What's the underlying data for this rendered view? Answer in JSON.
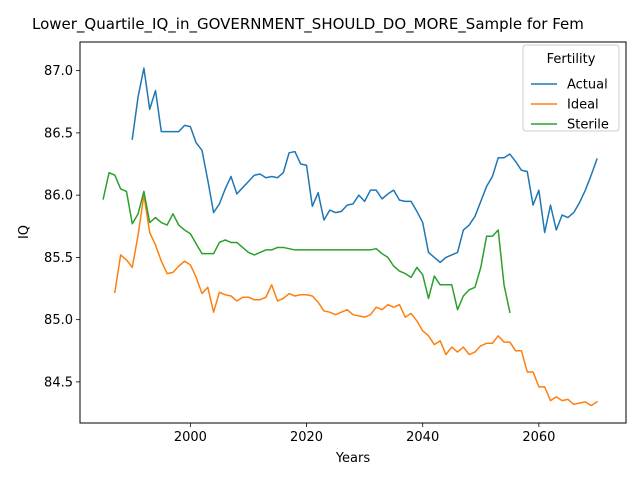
{
  "chart_data": {
    "type": "line",
    "title": "Lower_Quartile_IQ_in_GOVERNMENT_SHOULD_DO_MORE_Sample for Fem",
    "xlabel": "Years",
    "ylabel": "IQ",
    "xlim": [
      1981,
      2075
    ],
    "ylim": [
      84.17,
      87.23
    ],
    "x_ticks": [
      2000,
      2020,
      2040,
      2060
    ],
    "x_tick_labels": [
      "2000",
      "2020",
      "2040",
      "2060"
    ],
    "y_ticks": [
      84.5,
      85.0,
      85.5,
      86.0,
      86.5,
      87.0
    ],
    "y_tick_labels": [
      "84.5",
      "85.0",
      "85.5",
      "86.0",
      "86.5",
      "87.0"
    ],
    "grid": false,
    "legend": {
      "title": "Fertility",
      "placement": "top-right"
    },
    "series": [
      {
        "name": "Actual",
        "color": "#1f77b4",
        "x": [
          1990,
          1991,
          1992,
          1993,
          1994,
          1995,
          1996,
          1997,
          1998,
          1999,
          2000,
          2001,
          2002,
          2003,
          2004,
          2005,
          2006,
          2007,
          2008,
          2009,
          2010,
          2011,
          2012,
          2013,
          2014,
          2015,
          2016,
          2017,
          2018,
          2019,
          2020,
          2021,
          2022,
          2023,
          2024,
          2025,
          2026,
          2027,
          2028,
          2029,
          2030,
          2031,
          2032,
          2033,
          2034,
          2035,
          2036,
          2037,
          2038,
          2039,
          2040,
          2041,
          2042,
          2043,
          2044,
          2045,
          2046,
          2047,
          2048,
          2049,
          2050,
          2051,
          2052,
          2053,
          2054,
          2055,
          2056,
          2057,
          2058,
          2059,
          2060,
          2061,
          2062,
          2063,
          2064,
          2065,
          2066,
          2067,
          2068,
          2069,
          2070
        ],
        "values": [
          86.45,
          86.79,
          87.02,
          86.69,
          86.84,
          86.51,
          86.51,
          86.51,
          86.51,
          86.56,
          86.55,
          86.42,
          86.36,
          86.12,
          85.86,
          85.93,
          86.05,
          86.15,
          86.01,
          86.06,
          86.11,
          86.16,
          86.17,
          86.14,
          86.15,
          86.14,
          86.18,
          86.34,
          86.35,
          86.25,
          86.24,
          85.91,
          86.02,
          85.8,
          85.88,
          85.86,
          85.87,
          85.92,
          85.93,
          86.0,
          85.95,
          86.04,
          86.04,
          85.97,
          86.01,
          86.04,
          85.96,
          85.95,
          85.95,
          85.87,
          85.78,
          85.54,
          85.5,
          85.46,
          85.5,
          85.52,
          85.54,
          85.72,
          85.76,
          85.83,
          85.95,
          86.07,
          86.15,
          86.3,
          86.3,
          86.33,
          86.27,
          86.2,
          86.19,
          85.92,
          86.04,
          85.7,
          85.92,
          85.72,
          85.84,
          85.82,
          85.86,
          85.94,
          86.04,
          86.16,
          86.29
        ]
      },
      {
        "name": "Ideal",
        "color": "#ff7f0e",
        "x": [
          1987,
          1988,
          1989,
          1990,
          1991,
          1992,
          1993,
          1994,
          1995,
          1996,
          1997,
          1998,
          1999,
          2000,
          2001,
          2002,
          2003,
          2004,
          2005,
          2006,
          2007,
          2008,
          2009,
          2010,
          2011,
          2012,
          2013,
          2014,
          2015,
          2016,
          2017,
          2018,
          2019,
          2020,
          2021,
          2022,
          2023,
          2024,
          2025,
          2026,
          2027,
          2028,
          2029,
          2030,
          2031,
          2032,
          2033,
          2034,
          2035,
          2036,
          2037,
          2038,
          2039,
          2040,
          2041,
          2042,
          2043,
          2044,
          2045,
          2046,
          2047,
          2048,
          2049,
          2050,
          2051,
          2052,
          2053,
          2054,
          2055,
          2056,
          2057,
          2058,
          2059,
          2060,
          2061,
          2062,
          2063,
          2064,
          2065,
          2066,
          2067,
          2068,
          2069,
          2070
        ],
        "values": [
          85.22,
          85.52,
          85.48,
          85.42,
          85.68,
          86.0,
          85.7,
          85.6,
          85.47,
          85.37,
          85.38,
          85.43,
          85.47,
          85.44,
          85.34,
          85.21,
          85.26,
          85.06,
          85.22,
          85.2,
          85.19,
          85.15,
          85.18,
          85.18,
          85.16,
          85.16,
          85.18,
          85.28,
          85.15,
          85.17,
          85.21,
          85.19,
          85.2,
          85.2,
          85.19,
          85.14,
          85.07,
          85.06,
          85.04,
          85.06,
          85.08,
          85.04,
          85.03,
          85.02,
          85.04,
          85.1,
          85.08,
          85.12,
          85.1,
          85.12,
          85.02,
          85.05,
          84.99,
          84.91,
          84.87,
          84.8,
          84.83,
          84.72,
          84.78,
          84.74,
          84.78,
          84.72,
          84.74,
          84.79,
          84.81,
          84.81,
          84.87,
          84.82,
          84.82,
          84.75,
          84.75,
          84.58,
          84.58,
          84.46,
          84.46,
          84.35,
          84.38,
          84.35,
          84.36,
          84.32,
          84.33,
          84.34,
          84.31,
          84.34
        ]
      },
      {
        "name": "Sterile",
        "color": "#2ca02c",
        "x": [
          1985,
          1986,
          1987,
          1988,
          1989,
          1990,
          1991,
          1992,
          1993,
          1994,
          1995,
          1996,
          1997,
          1998,
          1999,
          2000,
          2001,
          2002,
          2003,
          2004,
          2005,
          2006,
          2007,
          2008,
          2009,
          2010,
          2011,
          2012,
          2013,
          2014,
          2015,
          2016,
          2017,
          2018,
          2019,
          2020,
          2021,
          2022,
          2023,
          2024,
          2025,
          2026,
          2027,
          2028,
          2029,
          2030,
          2031,
          2032,
          2033,
          2034,
          2035,
          2036,
          2037,
          2038,
          2039,
          2040,
          2041,
          2042,
          2043,
          2044,
          2045,
          2046,
          2047,
          2048,
          2049,
          2050,
          2051,
          2052,
          2053,
          2054,
          2055
        ],
        "values": [
          85.97,
          86.18,
          86.16,
          86.05,
          86.03,
          85.77,
          85.85,
          86.03,
          85.78,
          85.82,
          85.78,
          85.76,
          85.85,
          85.76,
          85.72,
          85.69,
          85.61,
          85.53,
          85.53,
          85.53,
          85.62,
          85.64,
          85.62,
          85.62,
          85.58,
          85.54,
          85.52,
          85.54,
          85.56,
          85.56,
          85.58,
          85.58,
          85.57,
          85.56,
          85.56,
          85.56,
          85.56,
          85.56,
          85.56,
          85.56,
          85.56,
          85.56,
          85.56,
          85.56,
          85.56,
          85.56,
          85.56,
          85.57,
          85.53,
          85.5,
          85.43,
          85.39,
          85.37,
          85.34,
          85.42,
          85.36,
          85.17,
          85.35,
          85.28,
          85.28,
          85.28,
          85.08,
          85.19,
          85.24,
          85.26,
          85.42,
          85.67,
          85.67,
          85.72,
          85.28,
          85.06
        ]
      }
    ]
  }
}
